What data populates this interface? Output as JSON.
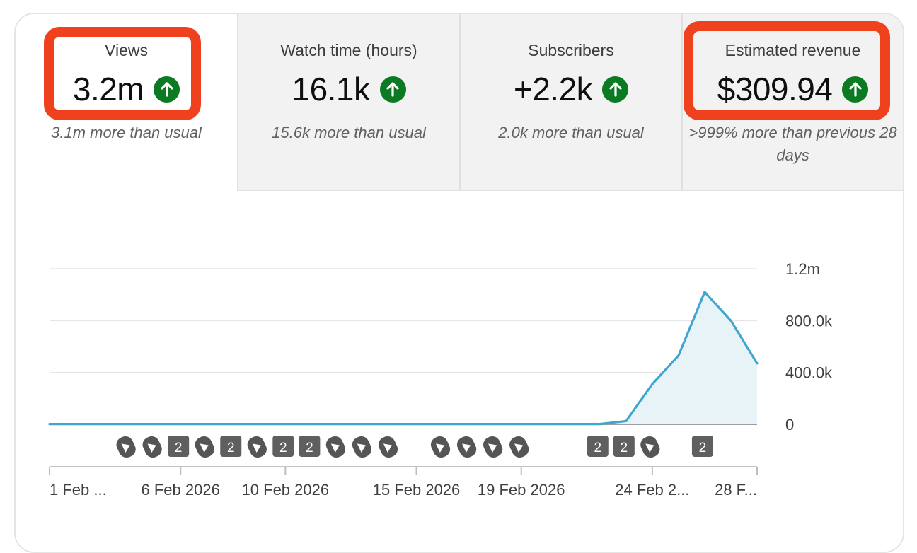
{
  "metrics": {
    "views": {
      "label": "Views",
      "value": "3.2m",
      "comparison": "3.1m more than usual"
    },
    "watch_time": {
      "label": "Watch time (hours)",
      "value": "16.1k",
      "comparison": "15.6k more than usual"
    },
    "subscribers": {
      "label": "Subscribers",
      "value": "+2.2k",
      "comparison": "2.0k more than usual"
    },
    "revenue": {
      "label": "Estimated revenue",
      "value": "$309.94",
      "comparison": ">999% more than previous 28 days"
    }
  },
  "icons": {
    "trend": "arrow-up-icon",
    "short": "shorts-icon"
  },
  "colors": {
    "line": "#3ea6cf",
    "area": "#e8f3f8",
    "trend_up": "#0b7a23",
    "highlight": "#f0411f"
  },
  "chart_data": {
    "type": "area",
    "title": "",
    "xlabel": "",
    "ylabel": "",
    "x_ticks": [
      "1 Feb ...",
      "6 Feb 2026",
      "10 Feb 2026",
      "15 Feb 2026",
      "19 Feb 2026",
      "24 Feb 2...",
      "28 F..."
    ],
    "y_ticks": [
      "0",
      "400.0k",
      "800.0k",
      "1.2m"
    ],
    "ylim": [
      0,
      1200000
    ],
    "grid": true,
    "series": [
      {
        "x": [
          "1 Feb",
          "2 Feb",
          "3 Feb",
          "4 Feb",
          "5 Feb",
          "6 Feb",
          "7 Feb",
          "8 Feb",
          "9 Feb",
          "10 Feb",
          "11 Feb",
          "12 Feb",
          "13 Feb",
          "14 Feb",
          "15 Feb",
          "16 Feb",
          "17 Feb",
          "18 Feb",
          "19 Feb",
          "20 Feb",
          "21 Feb",
          "22 Feb",
          "23 Feb",
          "24 Feb",
          "25 Feb",
          "26 Feb",
          "27 Feb",
          "28 Feb"
        ],
        "values": [
          2000,
          2000,
          2000,
          2000,
          2000,
          2000,
          2000,
          2000,
          2000,
          2000,
          2000,
          2000,
          2000,
          2000,
          2000,
          2000,
          2000,
          2000,
          2000,
          2000,
          2000,
          2000,
          25000,
          310000,
          530000,
          1020000,
          800000,
          470000
        ]
      }
    ],
    "upload_markers": [
      {
        "x": "4 Feb",
        "kind": "short"
      },
      {
        "x": "5 Feb",
        "kind": "short"
      },
      {
        "x": "6 Feb",
        "kind": "count",
        "label": "2"
      },
      {
        "x": "7 Feb",
        "kind": "short"
      },
      {
        "x": "8 Feb",
        "kind": "count",
        "label": "2"
      },
      {
        "x": "9 Feb",
        "kind": "short"
      },
      {
        "x": "10 Feb",
        "kind": "count",
        "label": "2"
      },
      {
        "x": "11 Feb",
        "kind": "count",
        "label": "2"
      },
      {
        "x": "12 Feb",
        "kind": "short"
      },
      {
        "x": "13 Feb",
        "kind": "short"
      },
      {
        "x": "14 Feb",
        "kind": "short"
      },
      {
        "x": "16 Feb",
        "kind": "short"
      },
      {
        "x": "17 Feb",
        "kind": "short"
      },
      {
        "x": "18 Feb",
        "kind": "short"
      },
      {
        "x": "19 Feb",
        "kind": "short"
      },
      {
        "x": "22 Feb",
        "kind": "count",
        "label": "2"
      },
      {
        "x": "23 Feb",
        "kind": "count",
        "label": "2"
      },
      {
        "x": "24 Feb",
        "kind": "short"
      },
      {
        "x": "26 Feb",
        "kind": "count",
        "label": "2"
      }
    ]
  }
}
